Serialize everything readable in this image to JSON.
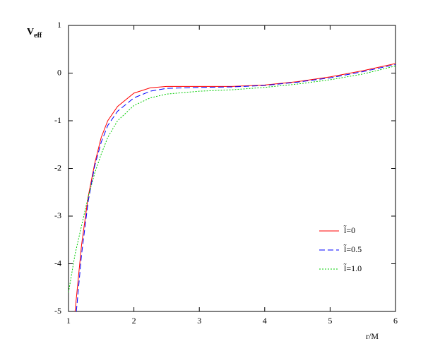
{
  "chart_data": {
    "type": "line",
    "xlabel": "r/M",
    "ylabel": "V",
    "ylabel_sub": "eff",
    "xlim": [
      1,
      6
    ],
    "ylim": [
      -5,
      1
    ],
    "xticks": [
      1,
      2,
      3,
      4,
      5,
      6
    ],
    "yticks": [
      -5,
      -4,
      -3,
      -2,
      -1,
      0,
      1
    ],
    "series": [
      {
        "name": "l̃=0",
        "color": "#ff0000",
        "style": "solid",
        "x": [
          1.1,
          1.2,
          1.3,
          1.4,
          1.5,
          1.6,
          1.75,
          2,
          2.25,
          2.5,
          3,
          3.5,
          4,
          4.5,
          5,
          5.5,
          6
        ],
        "values": [
          -5,
          -3.6,
          -2.6,
          -1.9,
          -1.35,
          -1.0,
          -0.7,
          -0.42,
          -0.31,
          -0.28,
          -0.28,
          -0.28,
          -0.25,
          -0.18,
          -0.08,
          0.05,
          0.2
        ]
      },
      {
        "name": "l̃=0.5",
        "color": "#0000ff",
        "style": "dashed",
        "x": [
          1.12,
          1.2,
          1.3,
          1.4,
          1.5,
          1.6,
          1.75,
          2,
          2.25,
          2.5,
          3,
          3.5,
          4,
          4.5,
          5,
          5.5,
          6
        ],
        "values": [
          -5,
          -3.8,
          -2.7,
          -1.95,
          -1.45,
          -1.1,
          -0.8,
          -0.52,
          -0.38,
          -0.32,
          -0.3,
          -0.29,
          -0.26,
          -0.19,
          -0.1,
          0.03,
          0.18
        ]
      },
      {
        "name": "l̃=1.0",
        "color": "#00cc00",
        "style": "dotted",
        "x": [
          1,
          1.1,
          1.2,
          1.3,
          1.4,
          1.5,
          1.6,
          1.75,
          2,
          2.25,
          2.5,
          3,
          3.5,
          4,
          4.5,
          5,
          5.5,
          6
        ],
        "values": [
          -4.6,
          -3.8,
          -3.2,
          -2.6,
          -2.1,
          -1.7,
          -1.35,
          -1.0,
          -0.68,
          -0.52,
          -0.44,
          -0.38,
          -0.35,
          -0.3,
          -0.23,
          -0.14,
          -0.02,
          0.15
        ]
      }
    ]
  }
}
